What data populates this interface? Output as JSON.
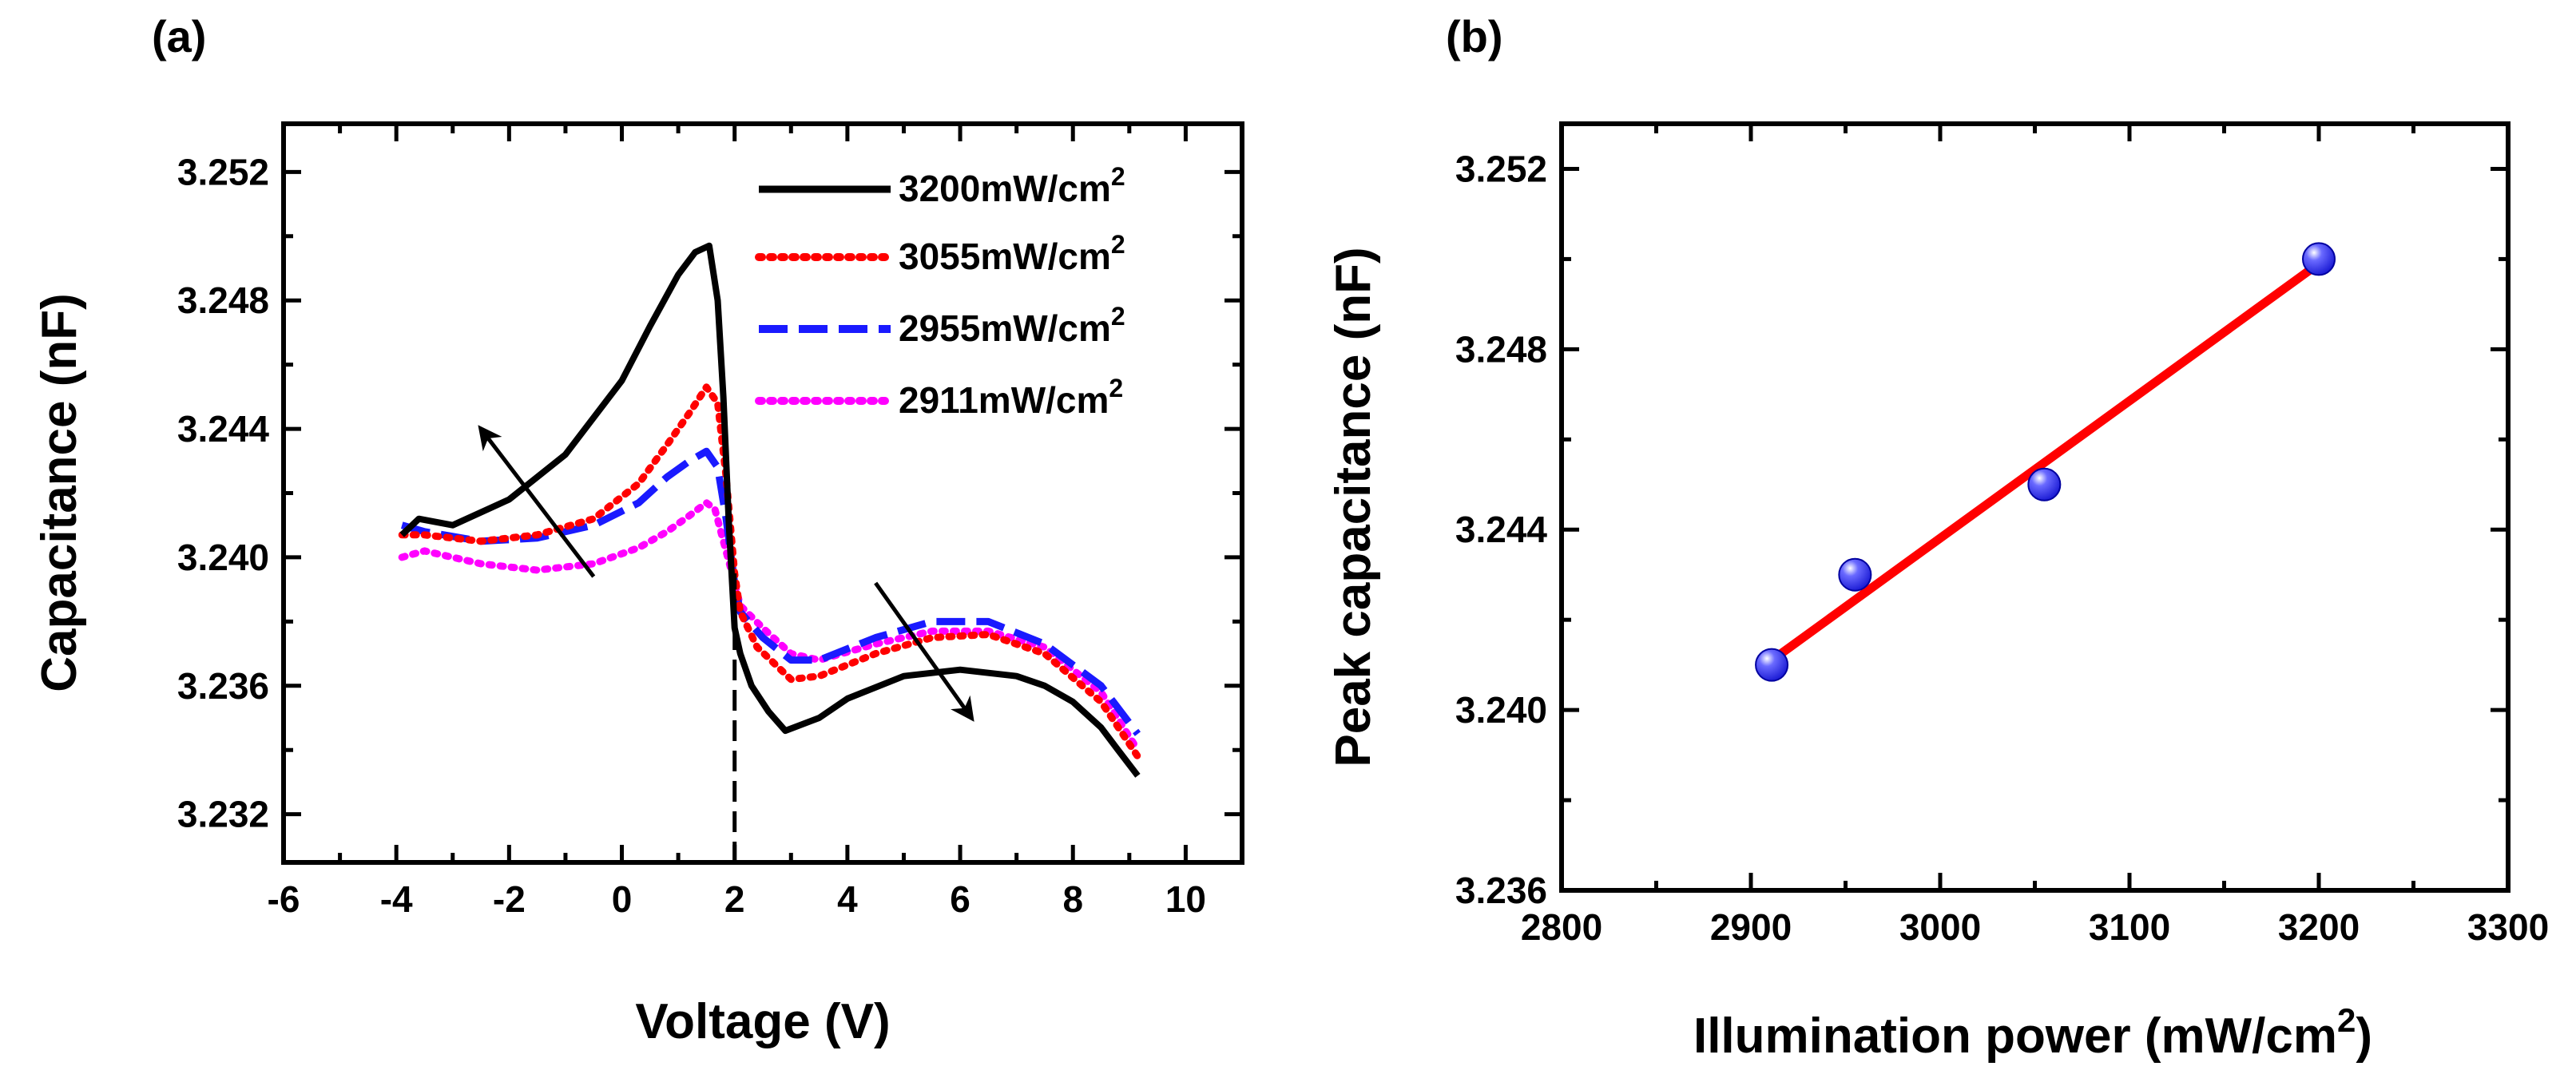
{
  "chart_data": [
    {
      "panel_label": "(a)",
      "type": "line",
      "xlabel": "Voltage (V)",
      "ylabel": "Capacitance (nF)",
      "xlim": [
        -6,
        11
      ],
      "ylim": [
        3.2305,
        3.2535
      ],
      "xticks": [
        -6,
        -4,
        -2,
        0,
        2,
        4,
        6,
        8,
        10
      ],
      "xtick_labels": [
        "-6",
        "-4",
        "-2",
        "0",
        "2",
        "4",
        "6",
        "8",
        "10"
      ],
      "yticks": [
        3.232,
        3.236,
        3.24,
        3.244,
        3.248,
        3.252
      ],
      "ytick_labels": [
        "3.232",
        "3.236",
        "3.240",
        "3.244",
        "3.248",
        "3.252"
      ],
      "legend_position": "top-right",
      "series": [
        {
          "name": "3200mW/cm",
          "superscript": "2",
          "color": "#000000",
          "style": "solid",
          "x": [
            -3.9,
            -3.6,
            -3.0,
            -2.0,
            -1.0,
            0.0,
            0.5,
            1.0,
            1.3,
            1.55,
            1.7,
            1.8,
            1.9,
            2.0,
            2.1,
            2.3,
            2.6,
            2.9,
            3.5,
            4.0,
            5.0,
            6.0,
            7.0,
            7.5,
            8.0,
            8.5,
            8.8,
            9.15
          ],
          "y": [
            3.2407,
            3.2412,
            3.241,
            3.2418,
            3.2432,
            3.2455,
            3.2472,
            3.2488,
            3.2495,
            3.2497,
            3.248,
            3.245,
            3.241,
            3.2378,
            3.237,
            3.236,
            3.2352,
            3.2346,
            3.235,
            3.2356,
            3.2363,
            3.2365,
            3.2363,
            3.236,
            3.2355,
            3.2347,
            3.234,
            3.2332
          ]
        },
        {
          "name": "3055mW/cm",
          "superscript": "2",
          "color": "#ff0000",
          "style": "dotted",
          "x": [
            -3.9,
            -3.5,
            -2.5,
            -1.5,
            -0.5,
            0.3,
            0.8,
            1.2,
            1.5,
            1.7,
            1.85,
            2.0,
            2.1,
            2.4,
            3.0,
            3.5,
            4.5,
            5.5,
            6.5,
            7.5,
            8.5,
            9.15
          ],
          "y": [
            3.2407,
            3.2407,
            3.2405,
            3.2407,
            3.2412,
            3.2423,
            3.2435,
            3.2445,
            3.2453,
            3.2448,
            3.2425,
            3.2395,
            3.2383,
            3.2372,
            3.2362,
            3.2363,
            3.237,
            3.2375,
            3.2376,
            3.237,
            3.2355,
            3.2338
          ]
        },
        {
          "name": "2955mW/cm",
          "superscript": "2",
          "color": "#1a1aff",
          "style": "dashed",
          "x": [
            -3.9,
            -3.5,
            -2.5,
            -1.5,
            -0.5,
            0.3,
            0.8,
            1.2,
            1.5,
            1.7,
            1.85,
            2.0,
            2.1,
            2.5,
            3.0,
            3.5,
            4.5,
            5.5,
            6.5,
            7.5,
            8.5,
            9.15
          ],
          "y": [
            3.241,
            3.2408,
            3.2405,
            3.2406,
            3.241,
            3.2417,
            3.2425,
            3.243,
            3.2433,
            3.2428,
            3.2412,
            3.2392,
            3.2383,
            3.2375,
            3.2368,
            3.2368,
            3.2375,
            3.238,
            3.238,
            3.2373,
            3.236,
            3.2345
          ]
        },
        {
          "name": "2911mW/cm",
          "superscript": "2",
          "color": "#ff00ff",
          "style": "dotted",
          "x": [
            -3.9,
            -3.5,
            -2.5,
            -1.5,
            -0.5,
            0.3,
            0.8,
            1.2,
            1.5,
            1.65,
            1.8,
            2.0,
            2.1,
            2.5,
            3.0,
            3.5,
            4.5,
            5.5,
            6.5,
            7.5,
            8.5,
            9.15
          ],
          "y": [
            3.24,
            3.2402,
            3.2398,
            3.2396,
            3.2398,
            3.2403,
            3.2408,
            3.2413,
            3.2417,
            3.2415,
            3.2405,
            3.2392,
            3.2385,
            3.2378,
            3.237,
            3.2368,
            3.2373,
            3.2377,
            3.2377,
            3.2372,
            3.2358,
            3.234
          ]
        }
      ],
      "annotations": [
        {
          "type": "vline",
          "x": 2.0,
          "y_from": 3.2305,
          "y_to": 3.2395,
          "style": "dashed"
        },
        {
          "type": "arrow",
          "from": [
            -0.5,
            3.2394
          ],
          "to": [
            -2.5,
            3.244
          ]
        },
        {
          "type": "arrow",
          "from": [
            4.5,
            3.2392
          ],
          "to": [
            6.2,
            3.235
          ]
        }
      ]
    },
    {
      "panel_label": "(b)",
      "type": "scatter",
      "xlabel": "Illumination power (mW/cm",
      "xlabel_superscript": "2",
      "xlabel_suffix": ")",
      "ylabel": "Peak capacitance (nF)",
      "xlim": [
        2800,
        3300
      ],
      "ylim": [
        3.236,
        3.253
      ],
      "xticks": [
        2800,
        2900,
        3000,
        3100,
        3200,
        3300
      ],
      "xtick_labels": [
        "2800",
        "2900",
        "3000",
        "3100",
        "3200",
        "3300"
      ],
      "yticks": [
        3.236,
        3.24,
        3.244,
        3.248,
        3.252
      ],
      "ytick_labels": [
        "3.236",
        "3.240",
        "3.244",
        "3.248",
        "3.252"
      ],
      "points": {
        "x": [
          2911,
          2955,
          3055,
          3200
        ],
        "y": [
          3.241,
          3.243,
          3.245,
          3.25
        ],
        "color": "#1f1fd6"
      },
      "fit_line": {
        "x": [
          2911,
          3200
        ],
        "y": [
          3.2411,
          3.2499
        ],
        "color": "#ff0000"
      }
    }
  ]
}
